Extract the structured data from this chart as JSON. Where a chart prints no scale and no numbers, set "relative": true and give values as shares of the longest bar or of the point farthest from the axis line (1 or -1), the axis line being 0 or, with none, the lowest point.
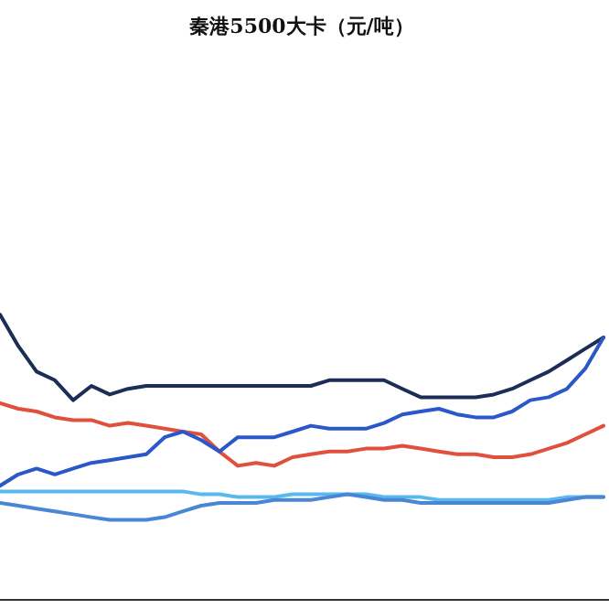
{
  "chart_data": {
    "type": "line",
    "title": "秦港5500大卡（元/吨）",
    "relative": true,
    "marker": "none",
    "line_style": "solid",
    "categories": [
      null,
      null,
      null,
      null,
      null,
      null,
      null,
      null,
      null,
      null,
      null,
      null,
      null,
      null,
      null,
      null,
      null,
      null,
      null,
      null,
      null,
      null,
      null,
      null,
      null,
      null,
      null,
      null,
      null,
      null,
      null,
      null,
      null,
      null
    ],
    "series": [
      {
        "color": "#1c2e55",
        "values": [
          1.0,
          0.89,
          0.8,
          0.77,
          0.7,
          0.75,
          0.72,
          0.74,
          0.75,
          0.75,
          0.75,
          0.75,
          0.75,
          0.75,
          0.75,
          0.75,
          0.75,
          0.75,
          0.77,
          0.77,
          0.77,
          0.77,
          0.74,
          0.71,
          0.71,
          0.71,
          0.71,
          0.72,
          0.74,
          0.77,
          0.8,
          0.84,
          0.88,
          0.92
        ]
      },
      {
        "color": "#e0503c",
        "values": [
          0.69,
          0.67,
          0.66,
          0.64,
          0.63,
          0.63,
          0.61,
          0.62,
          0.61,
          0.6,
          0.59,
          0.58,
          0.52,
          0.47,
          0.48,
          0.47,
          0.5,
          0.51,
          0.52,
          0.52,
          0.53,
          0.53,
          0.54,
          0.53,
          0.52,
          0.51,
          0.51,
          0.5,
          0.5,
          0.51,
          0.53,
          0.55,
          0.58,
          0.61
        ]
      },
      {
        "color": "#2a58c8",
        "values": [
          0.4,
          0.44,
          0.46,
          0.44,
          0.46,
          0.48,
          0.49,
          0.5,
          0.51,
          0.57,
          0.59,
          0.56,
          0.52,
          0.57,
          0.57,
          0.57,
          0.59,
          0.61,
          0.6,
          0.6,
          0.6,
          0.62,
          0.65,
          0.66,
          0.67,
          0.65,
          0.64,
          0.64,
          0.66,
          0.7,
          0.71,
          0.74,
          0.81,
          0.92
        ]
      },
      {
        "color": "#5ab8ee",
        "values": [
          0.38,
          0.38,
          0.38,
          0.38,
          0.38,
          0.38,
          0.38,
          0.38,
          0.38,
          0.38,
          0.38,
          0.37,
          0.37,
          0.36,
          0.36,
          0.36,
          0.37,
          0.37,
          0.37,
          0.37,
          0.37,
          0.36,
          0.36,
          0.36,
          0.35,
          0.35,
          0.35,
          0.35,
          0.35,
          0.35,
          0.35,
          0.36,
          0.36,
          0.36
        ]
      },
      {
        "color": "#4a86d6",
        "values": [
          0.34,
          0.33,
          0.32,
          0.31,
          0.3,
          0.29,
          0.28,
          0.28,
          0.28,
          0.29,
          0.31,
          0.33,
          0.34,
          0.34,
          0.34,
          0.35,
          0.35,
          0.35,
          0.36,
          0.37,
          0.36,
          0.35,
          0.35,
          0.34,
          0.34,
          0.34,
          0.34,
          0.34,
          0.34,
          0.34,
          0.34,
          0.35,
          0.36,
          0.36
        ]
      }
    ]
  }
}
